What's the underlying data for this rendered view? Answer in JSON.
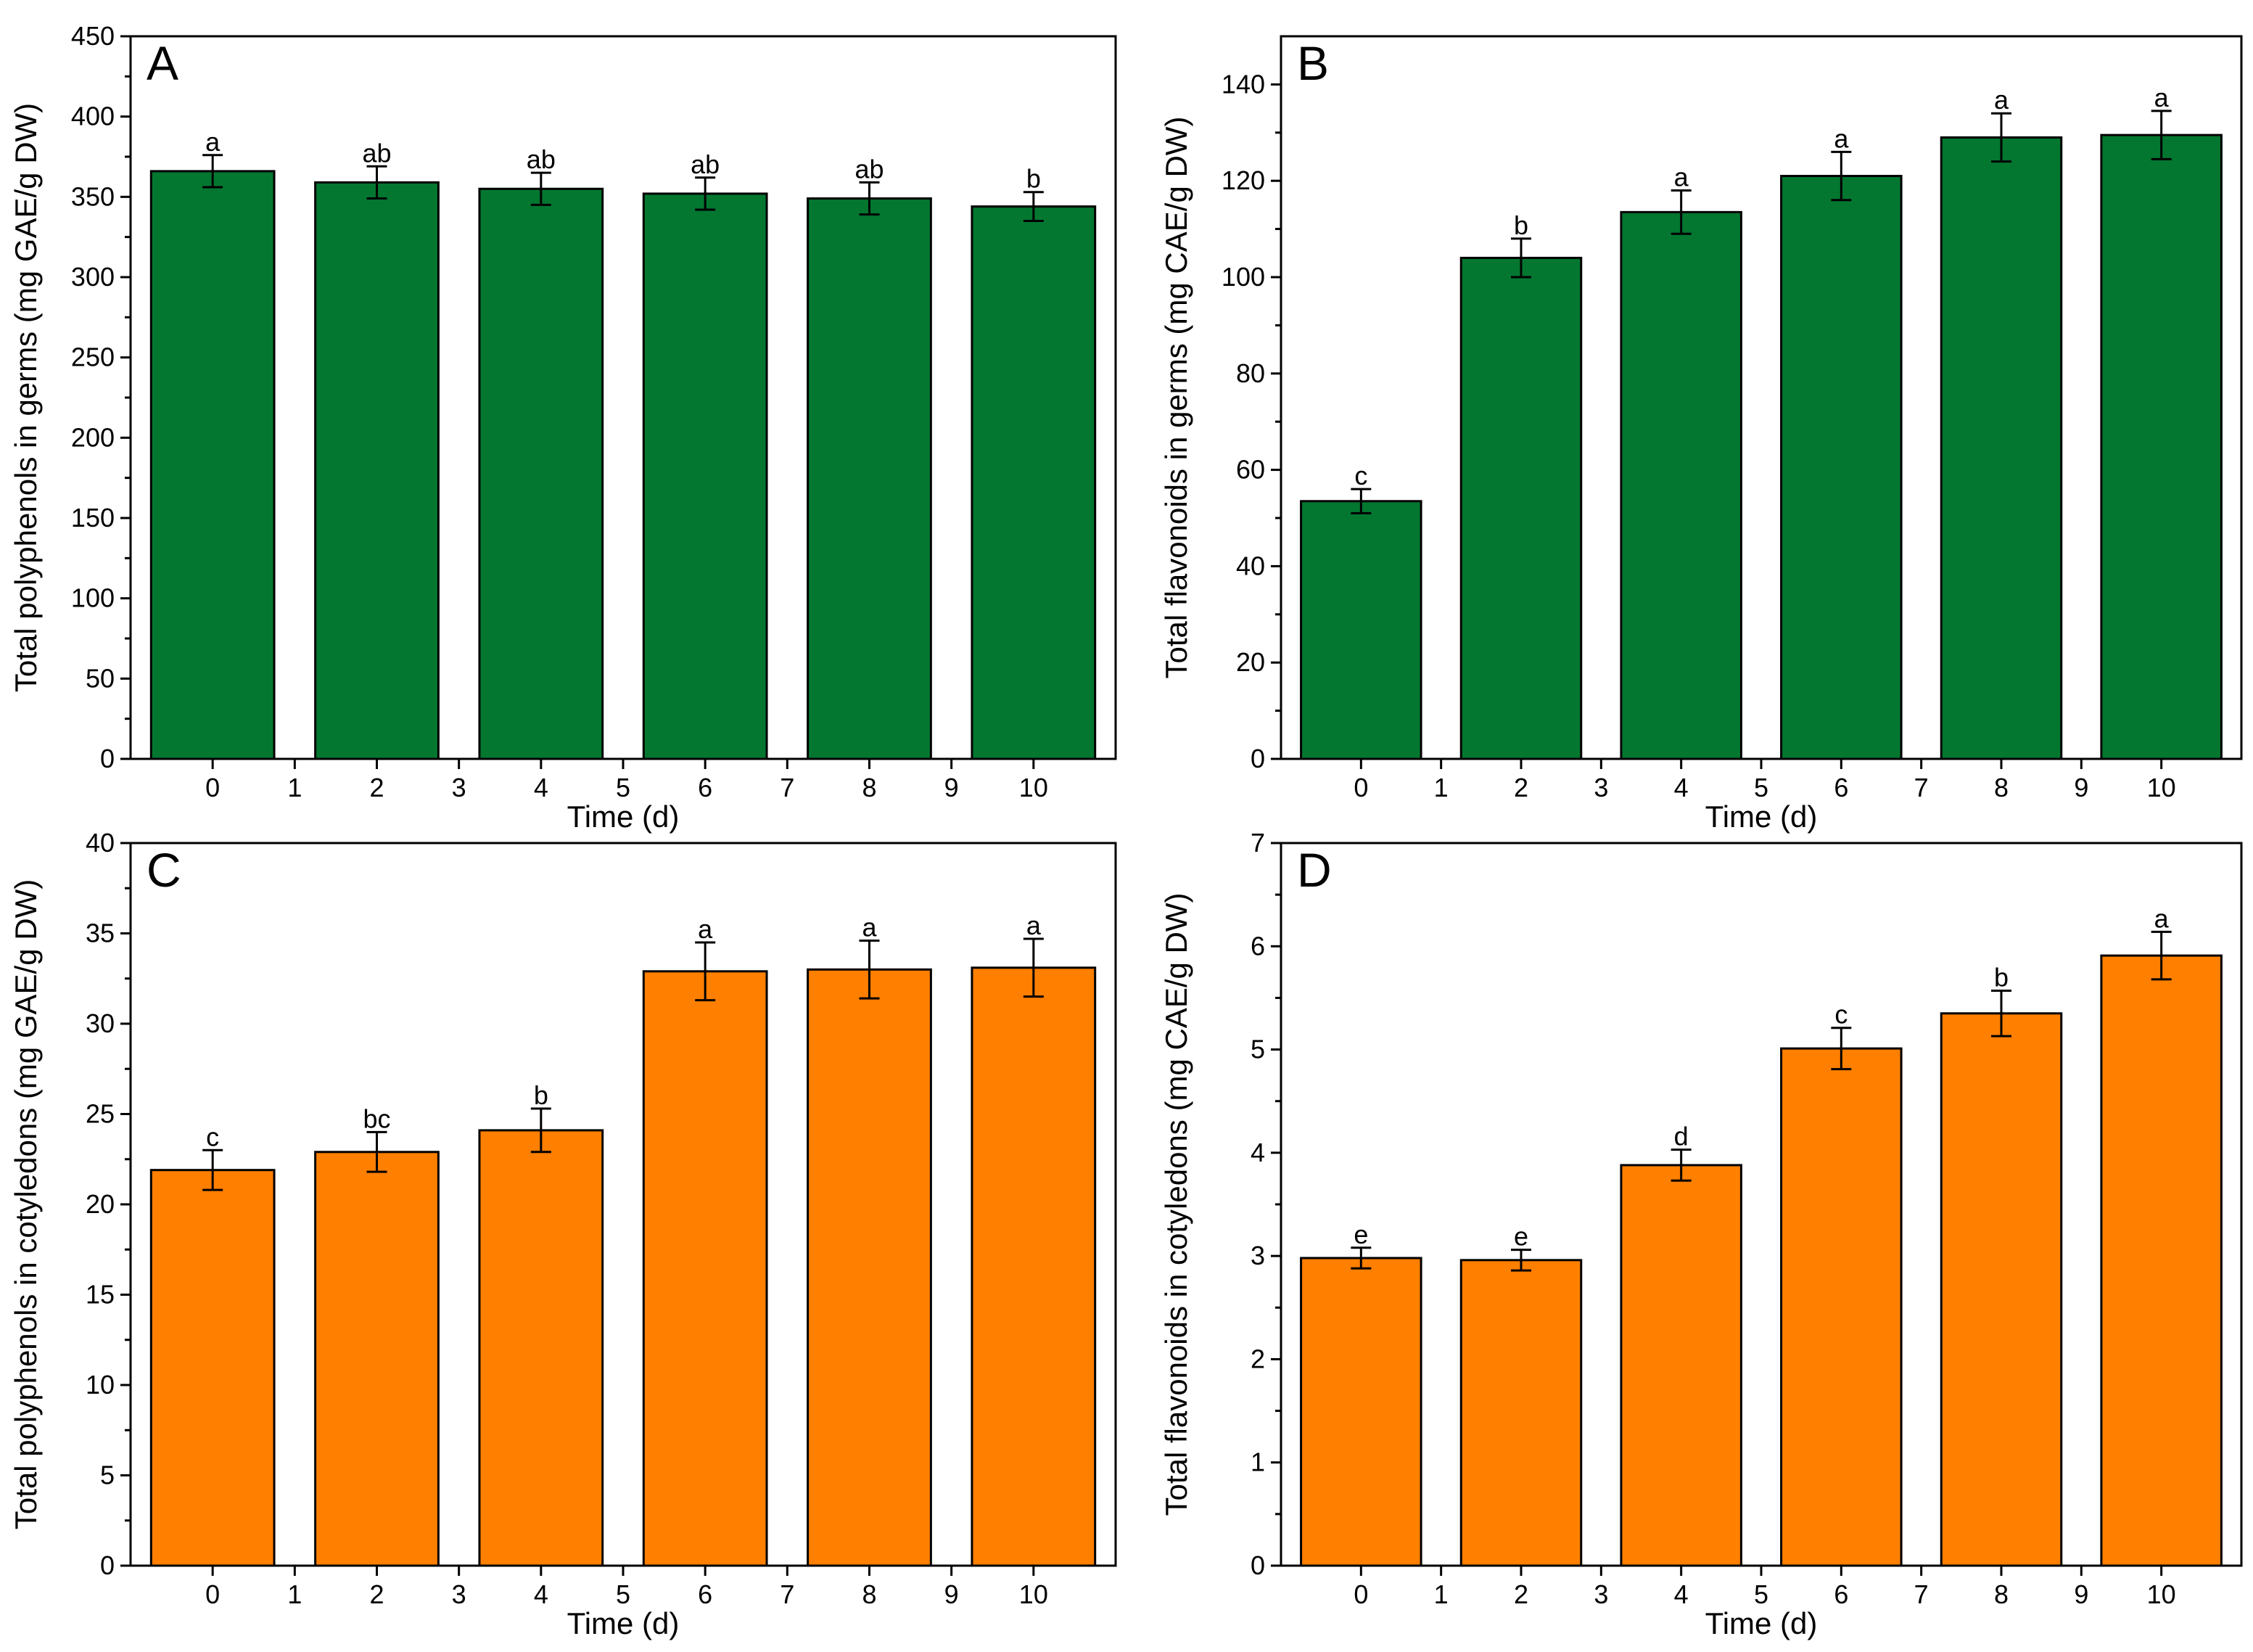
{
  "figure": {
    "bar_colors": {
      "green": "#037730",
      "orange": "#FF7F00"
    },
    "axis_color": "#000000"
  },
  "chart_data": [
    {
      "panel": "A",
      "type": "bar",
      "color": "#037730",
      "xlabel": "Time (d)",
      "ylabel": "Total polyphenols in germs (mg GAE/g DW)",
      "xlim": [
        -1,
        11
      ],
      "xticks": [
        "0",
        "1",
        "2",
        "3",
        "4",
        "5",
        "6",
        "7",
        "8",
        "9",
        "10"
      ],
      "ylim": [
        0,
        450
      ],
      "yticks": [
        "0",
        "50",
        "100",
        "150",
        "200",
        "250",
        "300",
        "350",
        "400",
        "450"
      ],
      "x": [
        0,
        2,
        4,
        6,
        8,
        10
      ],
      "values": [
        366,
        359,
        355,
        352,
        349,
        344
      ],
      "errors": [
        10,
        10,
        10,
        10,
        10,
        9
      ],
      "letters": [
        "a",
        "ab",
        "ab",
        "ab",
        "ab",
        "b"
      ]
    },
    {
      "panel": "B",
      "type": "bar",
      "color": "#037730",
      "xlabel": "Time (d)",
      "ylabel": "Total flavonoids in germs (mg CAE/g DW)",
      "xlim": [
        -1,
        11
      ],
      "xticks": [
        "0",
        "1",
        "2",
        "3",
        "4",
        "5",
        "6",
        "7",
        "8",
        "9",
        "10"
      ],
      "ylim": [
        0,
        150
      ],
      "yticks": [
        "0",
        "20",
        "40",
        "60",
        "80",
        "100",
        "120",
        "140"
      ],
      "x": [
        0,
        2,
        4,
        6,
        8,
        10
      ],
      "values": [
        53.5,
        104,
        113.5,
        121,
        129,
        129.5
      ],
      "errors": [
        2.5,
        4,
        4.5,
        5,
        5,
        5
      ],
      "letters": [
        "c",
        "b",
        "a",
        "a",
        "a",
        "a"
      ]
    },
    {
      "panel": "C",
      "type": "bar",
      "color": "#FF7F00",
      "xlabel": "Time (d)",
      "ylabel": "Total polyphenols in cotyledons (mg GAE/g DW)",
      "xlim": [
        -1,
        11
      ],
      "xticks": [
        "0",
        "1",
        "2",
        "3",
        "4",
        "5",
        "6",
        "7",
        "8",
        "9",
        "10"
      ],
      "ylim": [
        0,
        40
      ],
      "yticks": [
        "0",
        "5",
        "10",
        "15",
        "20",
        "25",
        "30",
        "35",
        "40"
      ],
      "x": [
        0,
        2,
        4,
        6,
        8,
        10
      ],
      "values": [
        21.9,
        22.9,
        24.1,
        32.9,
        33,
        33.1
      ],
      "errors": [
        1.1,
        1.1,
        1.2,
        1.6,
        1.6,
        1.6
      ],
      "letters": [
        "c",
        "bc",
        "b",
        "a",
        "a",
        "a"
      ]
    },
    {
      "panel": "D",
      "type": "bar",
      "color": "#FF7F00",
      "xlabel": "Time (d)",
      "ylabel": "Total flavonoids in cotyledons (mg CAE/g DW)",
      "xlim": [
        -1,
        11
      ],
      "xticks": [
        "0",
        "1",
        "2",
        "3",
        "4",
        "5",
        "6",
        "7",
        "8",
        "9",
        "10"
      ],
      "ylim": [
        0,
        7
      ],
      "yticks": [
        "0",
        "1",
        "2",
        "3",
        "4",
        "5",
        "6",
        "7"
      ],
      "x": [
        0,
        2,
        4,
        6,
        8,
        10
      ],
      "values": [
        2.98,
        2.96,
        3.88,
        5.01,
        5.35,
        5.91
      ],
      "errors": [
        0.1,
        0.1,
        0.15,
        0.2,
        0.22,
        0.23
      ],
      "letters": [
        "e",
        "e",
        "d",
        "c",
        "b",
        "a"
      ]
    }
  ]
}
